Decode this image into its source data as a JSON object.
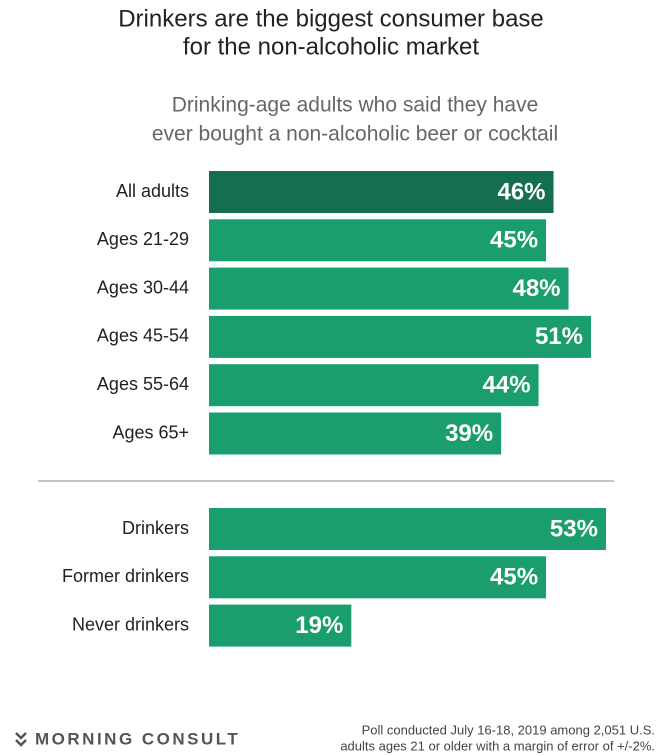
{
  "chart_data": [
    {
      "type": "bar",
      "title": [
        "Drinkers are the biggest consumer base",
        "for the non-alcoholic market"
      ],
      "subtitle": [
        "Drinking-age adults who said they have",
        "ever bought a non-alcoholic beer or cocktail"
      ],
      "categories": [
        "All adults",
        "Ages 21-29",
        "Ages 30-44",
        "Ages 45-54",
        "Ages 55-64",
        "Ages 65+"
      ],
      "values": [
        46,
        45,
        48,
        51,
        44,
        39
      ],
      "value_labels": [
        "46%",
        "45%",
        "48%",
        "51%",
        "44%",
        "39%"
      ],
      "colors": [
        "#156f4f",
        "#1a9e6e",
        "#1a9e6e",
        "#1a9e6e",
        "#1a9e6e",
        "#1a9e6e"
      ]
    },
    {
      "type": "bar",
      "categories": [
        "Drinkers",
        "Former drinkers",
        "Never drinkers"
      ],
      "values": [
        53,
        45,
        19
      ],
      "value_labels": [
        "53%",
        "45%",
        "19%"
      ],
      "colors": [
        "#1a9e6e",
        "#1a9e6e",
        "#1a9e6e"
      ]
    }
  ],
  "footer": {
    "logo": "MORNING CONSULT",
    "note": [
      "Poll conducted July 16-18, 2019 among 2,051 U.S.",
      "adults ages 21 or older with a margin of error of +/-2%."
    ]
  }
}
